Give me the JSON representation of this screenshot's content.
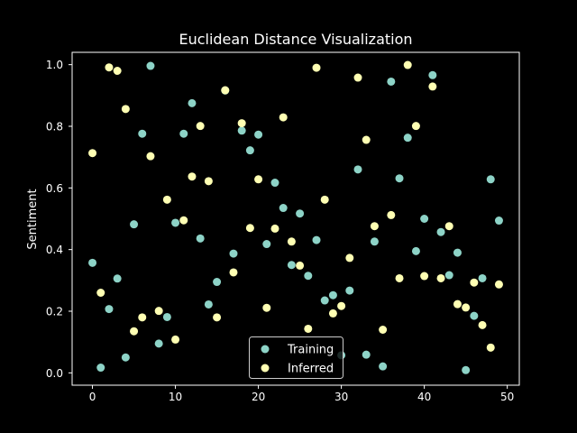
{
  "chart_data": {
    "type": "scatter",
    "title": "Euclidean Distance Visualization",
    "xlabel": "",
    "ylabel": "Sentiment",
    "xlim": [
      -2.45,
      51.45
    ],
    "ylim": [
      -0.04,
      1.04
    ],
    "xticks": [
      0,
      10,
      20,
      30,
      40,
      50
    ],
    "yticks": [
      0.0,
      0.2,
      0.4,
      0.6,
      0.8,
      1.0
    ],
    "xtick_labels": [
      "0",
      "10",
      "20",
      "30",
      "40",
      "50"
    ],
    "ytick_labels": [
      "0.0",
      "0.2",
      "0.4",
      "0.6",
      "0.8",
      "1.0"
    ],
    "grid": false,
    "legend_position": "bottom-center",
    "x": [
      0,
      1,
      2,
      3,
      4,
      5,
      6,
      7,
      8,
      9,
      10,
      11,
      12,
      13,
      14,
      15,
      16,
      17,
      18,
      19,
      20,
      21,
      22,
      23,
      24,
      25,
      26,
      27,
      28,
      29,
      30,
      31,
      32,
      33,
      34,
      35,
      36,
      37,
      38,
      39,
      40,
      41,
      42,
      43,
      44,
      45,
      46,
      47,
      48,
      49
    ],
    "series": [
      {
        "name": "Training",
        "color": "#8dd3c7",
        "values": [
          0.357,
          0.017,
          0.207,
          0.306,
          0.05,
          0.482,
          0.776,
          0.996,
          0.095,
          0.181,
          0.487,
          0.776,
          0.875,
          0.436,
          0.222,
          0.295,
          0.916,
          0.387,
          0.786,
          0.722,
          0.773,
          0.418,
          0.617,
          0.535,
          0.35,
          0.517,
          0.315,
          0.431,
          0.235,
          0.252,
          0.057,
          0.267,
          0.66,
          0.059,
          0.426,
          0.021,
          0.945,
          0.631,
          0.763,
          0.395,
          0.5,
          0.966,
          0.457,
          0.317,
          0.39,
          0.009,
          0.185,
          0.307,
          0.628,
          0.494
        ]
      },
      {
        "name": "Inferred",
        "color": "#ffffb3",
        "values": [
          0.713,
          0.26,
          0.991,
          0.98,
          0.856,
          0.135,
          0.18,
          0.703,
          0.201,
          0.562,
          0.108,
          0.495,
          0.637,
          0.801,
          0.622,
          0.18,
          0.917,
          0.326,
          0.81,
          0.47,
          0.628,
          0.211,
          0.468,
          0.829,
          0.426,
          0.348,
          0.143,
          0.99,
          0.562,
          0.193,
          0.217,
          0.373,
          0.958,
          0.756,
          0.476,
          0.14,
          0.512,
          0.307,
          0.999,
          0.801,
          0.314,
          0.929,
          0.307,
          0.476,
          0.223,
          0.212,
          0.293,
          0.155,
          0.082,
          0.287
        ]
      }
    ]
  }
}
